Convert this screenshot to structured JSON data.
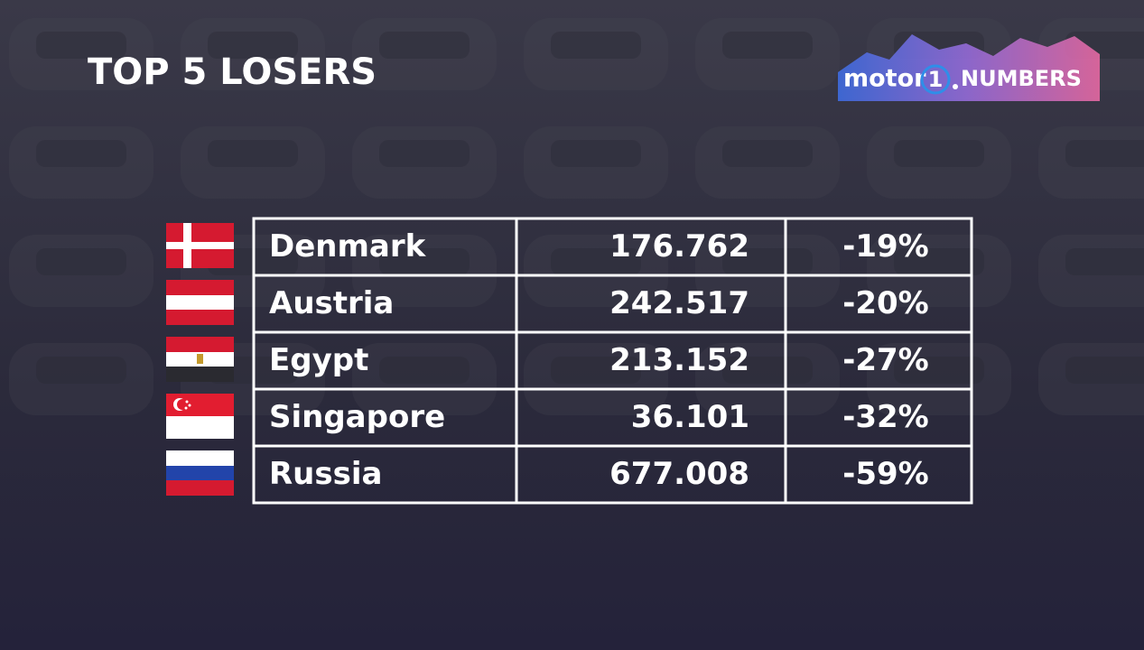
{
  "header": {
    "title": "TOP 5 LOSERS"
  },
  "logo": {
    "brand": "motor",
    "number": "1",
    "suffix": "NUMBERS"
  },
  "table": {
    "rows": [
      [
        "Denmark",
        "176.762",
        "-19%"
      ],
      [
        "Austria",
        "242.517",
        "-20%"
      ],
      [
        "Egypt",
        "213.152",
        "-27%"
      ],
      [
        "Singapore",
        "36.101",
        "-32%"
      ],
      [
        "Russia",
        "677.008",
        "-59%"
      ]
    ]
  }
}
